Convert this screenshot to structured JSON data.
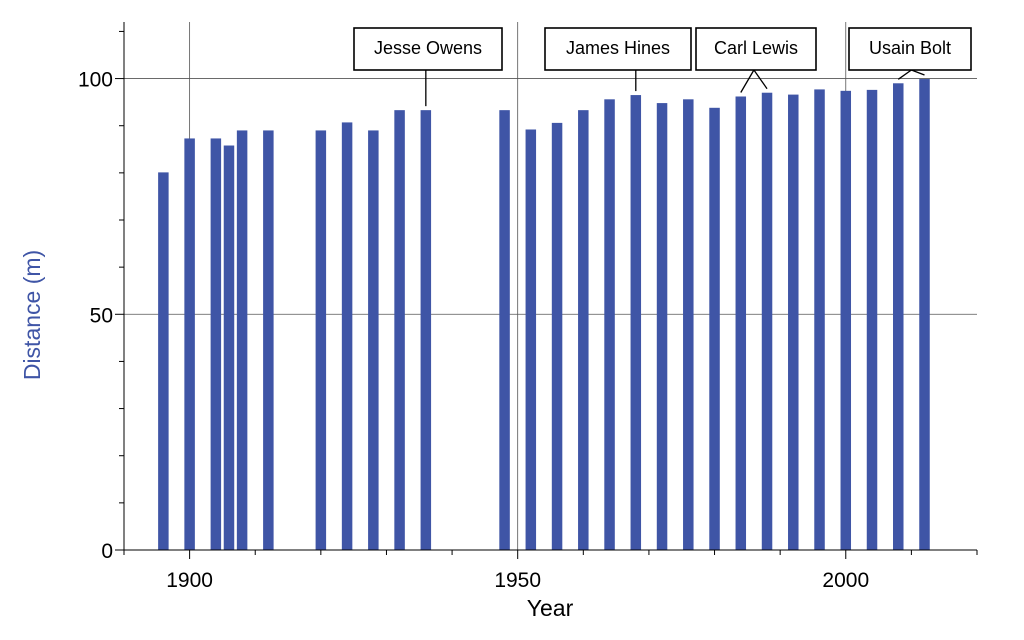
{
  "chart_data": {
    "type": "bar",
    "title": "",
    "xlabel": "Year",
    "ylabel": "Distance (m)",
    "xlim": [
      1890,
      2020
    ],
    "ylim": [
      0,
      112
    ],
    "x_ticks": [
      1900,
      1950,
      2000
    ],
    "x_tick_labels": [
      "1900",
      "1950",
      "2000"
    ],
    "y_ticks": [
      0,
      50,
      100
    ],
    "y_tick_labels": [
      "0",
      "50",
      "100"
    ],
    "grid": true,
    "legend": "none",
    "series": [
      {
        "x": [
          1896,
          1900,
          1904,
          1906,
          1908,
          1912,
          1920,
          1924,
          1928,
          1932,
          1936,
          1948,
          1952,
          1956,
          1960,
          1964,
          1968,
          1972,
          1976,
          1980,
          1984,
          1988,
          1992,
          1996,
          2000,
          2004,
          2008,
          2012
        ],
        "values": [
          80.1,
          87.3,
          87.3,
          85.8,
          89.0,
          89.0,
          89.0,
          90.7,
          89.0,
          93.3,
          93.3,
          93.3,
          89.2,
          90.6,
          93.3,
          95.6,
          96.5,
          94.8,
          95.6,
          93.8,
          96.2,
          97.0,
          96.6,
          97.7,
          97.4,
          97.6,
          99.0,
          99.9
        ]
      }
    ],
    "annotations": [
      {
        "text": "Jesse Owens",
        "points_to_years": [
          1936
        ]
      },
      {
        "text": "James Hines",
        "points_to_years": [
          1968
        ]
      },
      {
        "text": "Carl Lewis",
        "points_to_years": [
          1984,
          1988
        ]
      },
      {
        "text": "Usain Bolt",
        "points_to_years": [
          2008,
          2012
        ]
      }
    ],
    "colors": {
      "bar": "#3f55a6",
      "ylabel": "#3f55a6",
      "axis": "#000000",
      "grid": "#555555"
    }
  }
}
